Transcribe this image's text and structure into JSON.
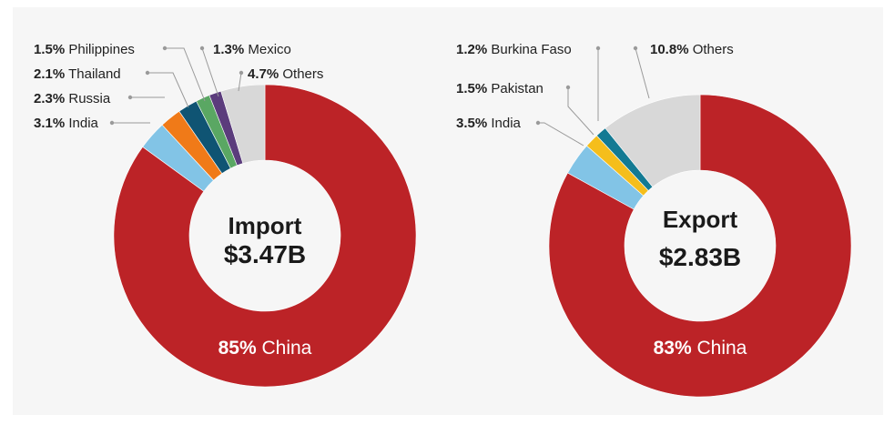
{
  "chart_data": [
    {
      "type": "pie",
      "center_title": "Import",
      "center_value": "$3.47B",
      "slices": [
        {
          "label": "China",
          "pct_label": "85%",
          "value": 85,
          "color": "#bc2327"
        },
        {
          "label": "India",
          "pct_label": "3.1%",
          "value": 3.1,
          "color": "#82c4e6"
        },
        {
          "label": "Russia",
          "pct_label": "2.3%",
          "value": 2.3,
          "color": "#f07a18"
        },
        {
          "label": "Thailand",
          "pct_label": "2.1%",
          "value": 2.1,
          "color": "#0f5473"
        },
        {
          "label": "Philippines",
          "pct_label": "1.5%",
          "value": 1.5,
          "color": "#5aa763"
        },
        {
          "label": "Mexico",
          "pct_label": "1.3%",
          "value": 1.3,
          "color": "#5b3c7c"
        },
        {
          "label": "Others",
          "pct_label": "4.7%",
          "value": 4.7,
          "color": "#d8d8d8"
        }
      ]
    },
    {
      "type": "pie",
      "center_title": "Export",
      "center_value": "$2.83B",
      "slices": [
        {
          "label": "China",
          "pct_label": "83%",
          "value": 83,
          "color": "#bc2327"
        },
        {
          "label": "India",
          "pct_label": "3.5%",
          "value": 3.5,
          "color": "#82c4e6"
        },
        {
          "label": "Pakistan",
          "pct_label": "1.5%",
          "value": 1.5,
          "color": "#f5be1b"
        },
        {
          "label": "Burkina Faso",
          "pct_label": "1.2%",
          "value": 1.2,
          "color": "#137a93"
        },
        {
          "label": "Others",
          "pct_label": "10.8%",
          "value": 10.8,
          "color": "#d8d8d8"
        }
      ]
    }
  ]
}
